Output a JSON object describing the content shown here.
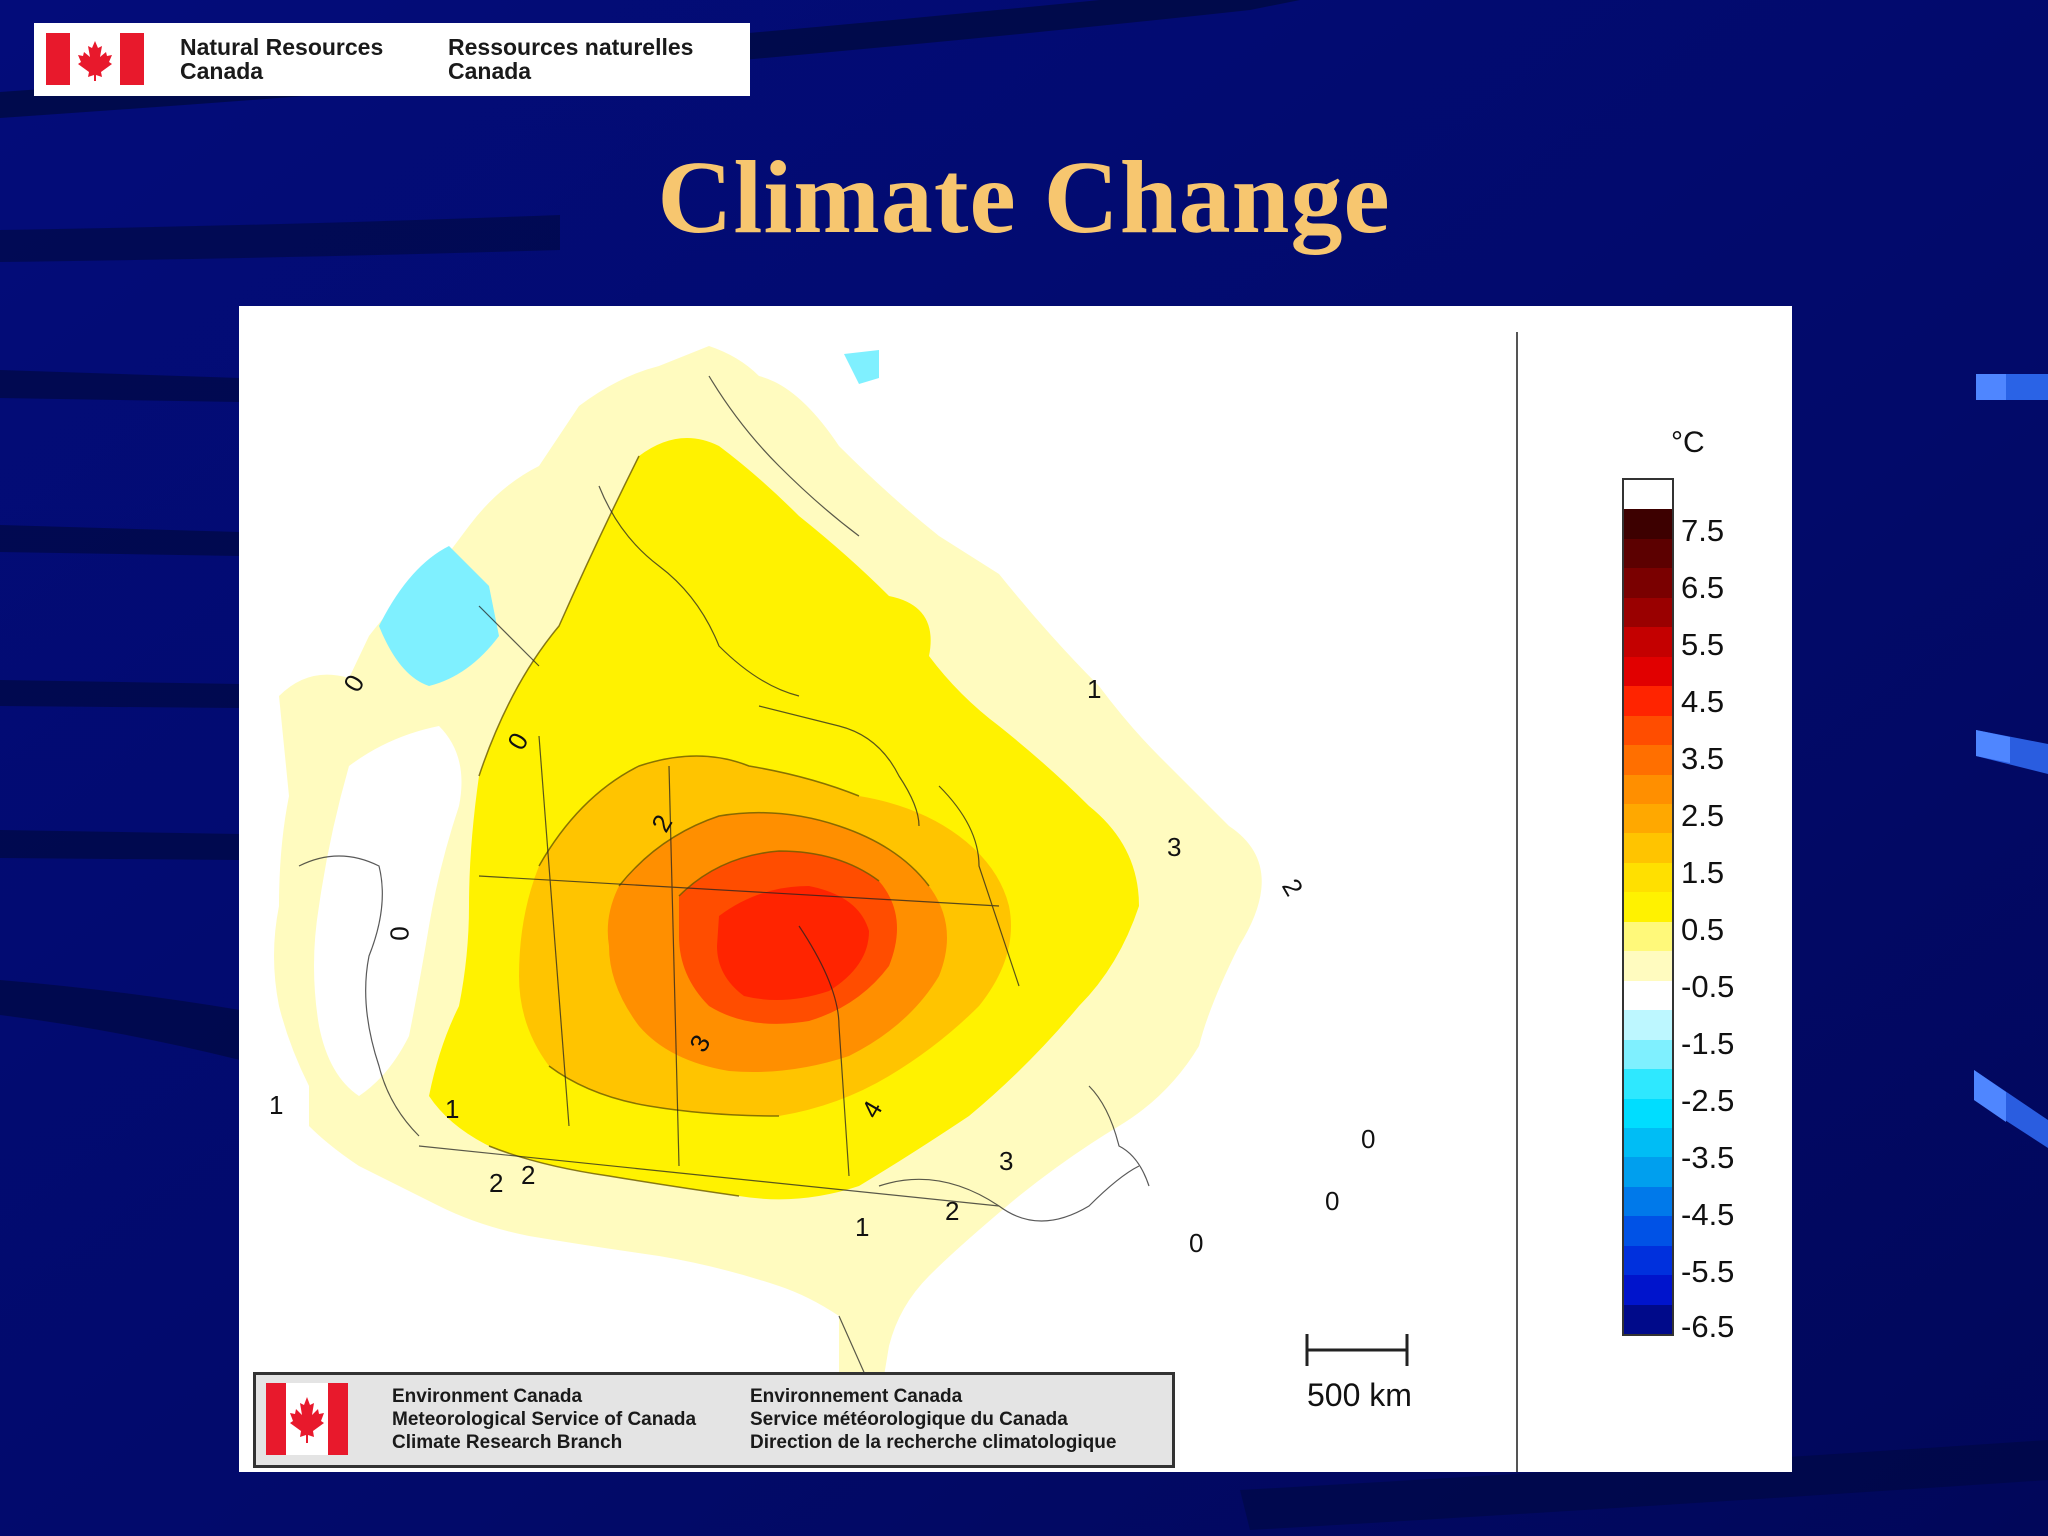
{
  "header": {
    "logo": {
      "en_line1": "Natural Resources",
      "en_line2": "Canada",
      "fr_line1": "Ressources naturelles",
      "fr_line2": "Canada"
    },
    "title": "Climate Change"
  },
  "map": {
    "contour_labels": [
      "0",
      "0",
      "0",
      "1",
      "2",
      "2",
      "3",
      "3",
      "4",
      "2",
      "1",
      "1",
      "2",
      "0",
      "0",
      "0",
      "1",
      "2",
      "3"
    ],
    "scale_bar_label": "500 km",
    "legend": {
      "unit": "°C",
      "labels": [
        "7.5",
        "6.5",
        "5.5",
        "4.5",
        "3.5",
        "2.5",
        "1.5",
        "0.5",
        "-0.5",
        "-1.5",
        "-2.5",
        "-3.5",
        "-4.5",
        "-5.5",
        "-6.5"
      ],
      "colors": [
        "#ffffff",
        "#3d0000",
        "#5c0000",
        "#7a0000",
        "#9a0000",
        "#c40000",
        "#e10000",
        "#ff2400",
        "#ff4d00",
        "#ff6f00",
        "#ff8f00",
        "#ffa800",
        "#ffc400",
        "#ffe000",
        "#fff200",
        "#fff97a",
        "#fffbbf",
        "#ffffff",
        "#bdf7ff",
        "#7ff0ff",
        "#2ee8ff",
        "#00ddff",
        "#00bdf5",
        "#009fee",
        "#0079ea",
        "#0052e6",
        "#0030dd",
        "#0014cc",
        "#000a8a"
      ]
    },
    "agency_logo": {
      "en_line1": "Environment Canada",
      "en_line2": "Meteorological Service of Canada",
      "en_line3": "Climate Research Branch",
      "fr_line1": "Environnement Canada",
      "fr_line2": "Service météorologique du Canada",
      "fr_line3": "Direction de la recherche climatologique"
    }
  },
  "colors": {
    "background": "#020a6e",
    "title": "#f7c66f",
    "flag_red": "#e8192c"
  }
}
